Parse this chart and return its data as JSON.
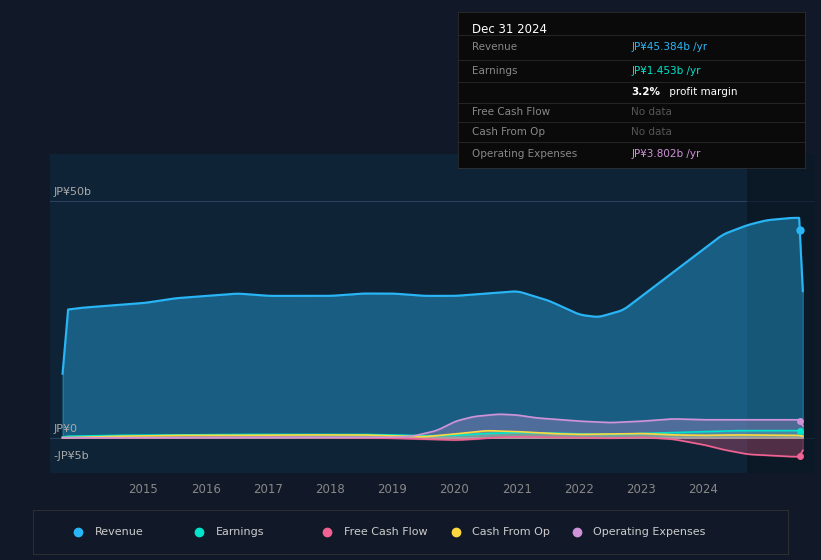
{
  "bg_color": "#111827",
  "plot_bg_color": "#0f2336",
  "title": "Dec 31 2024",
  "ylabel_top": "JP¥50b",
  "ylabel_zero": "JP¥0",
  "ylabel_neg": "-JP¥5b",
  "ylim": [
    -7.5,
    60
  ],
  "xlim_start": 2013.5,
  "xlim_end": 2025.8,
  "xticks": [
    2015,
    2016,
    2017,
    2018,
    2019,
    2020,
    2021,
    2022,
    2023,
    2024
  ],
  "colors": {
    "revenue": "#29b6f6",
    "earnings": "#00e5cc",
    "free_cash_flow": "#f06292",
    "cash_from_op": "#ffd740",
    "operating_expenses": "#ce93d8"
  },
  "legend": [
    {
      "label": "Revenue",
      "color": "#29b6f6"
    },
    {
      "label": "Earnings",
      "color": "#00e5cc"
    },
    {
      "label": "Free Cash Flow",
      "color": "#f06292"
    },
    {
      "label": "Cash From Op",
      "color": "#ffd740"
    },
    {
      "label": "Operating Expenses",
      "color": "#ce93d8"
    }
  ]
}
